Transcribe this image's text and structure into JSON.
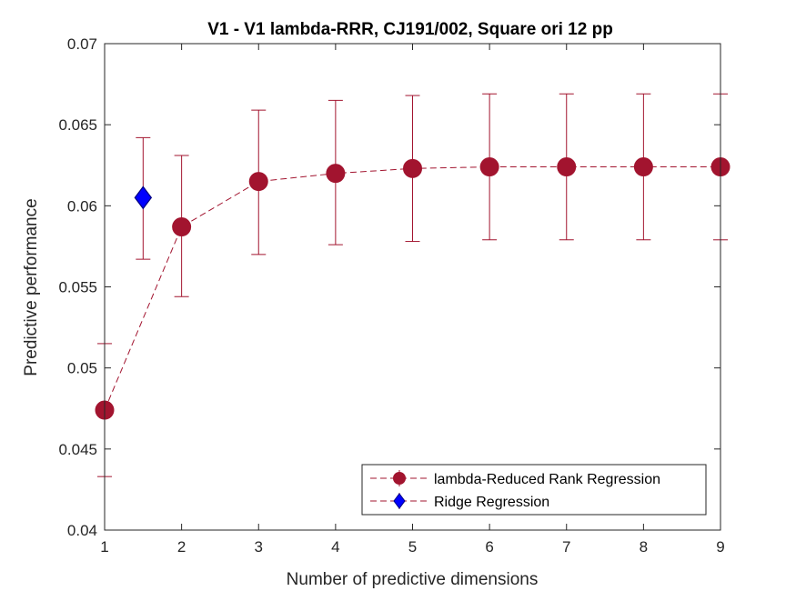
{
  "colors": {
    "rrr": "#a2142f",
    "ridge_fill": "#0000ff",
    "ridge_edge": "#000080",
    "axis": "#262626"
  },
  "chart_data": {
    "type": "line",
    "title": "V1 - V1 lambda-RRR, CJ191/002, Square ori 12 pp",
    "xlabel": "Number of predictive dimensions",
    "ylabel": "Predictive performance",
    "xlim": [
      1,
      9
    ],
    "ylim": [
      0.04,
      0.07
    ],
    "xticks": [
      1,
      2,
      3,
      4,
      5,
      6,
      7,
      8,
      9
    ],
    "xtick_labels": [
      "1",
      "2",
      "3",
      "4",
      "5",
      "6",
      "7",
      "8",
      "9"
    ],
    "yticks": [
      0.04,
      0.045,
      0.05,
      0.055,
      0.06,
      0.065,
      0.07
    ],
    "ytick_labels": [
      "0.04",
      "0.045",
      "0.05",
      "0.055",
      "0.06",
      "0.065",
      "0.07"
    ],
    "grid": false,
    "legend_position": "bottom-right",
    "series": [
      {
        "name": "lambda-Reduced Rank Regression",
        "marker": "circle",
        "line": "dashed",
        "x": [
          1,
          2,
          3,
          4,
          5,
          6,
          7,
          8,
          9
        ],
        "y": [
          0.0474,
          0.0587,
          0.0615,
          0.062,
          0.0623,
          0.0624,
          0.0624,
          0.0624,
          0.0624
        ],
        "err_low": [
          0.0433,
          0.0544,
          0.057,
          0.0576,
          0.0578,
          0.0579,
          0.0579,
          0.0579,
          0.0579
        ],
        "err_high": [
          0.0515,
          0.0631,
          0.0659,
          0.0665,
          0.0668,
          0.0669,
          0.0669,
          0.0669,
          0.0669
        ]
      },
      {
        "name": "Ridge Regression",
        "marker": "diamond",
        "line": "none",
        "x": [
          1.5
        ],
        "y": [
          0.0605
        ],
        "err_low": [
          0.0567
        ],
        "err_high": [
          0.0642
        ]
      }
    ]
  }
}
